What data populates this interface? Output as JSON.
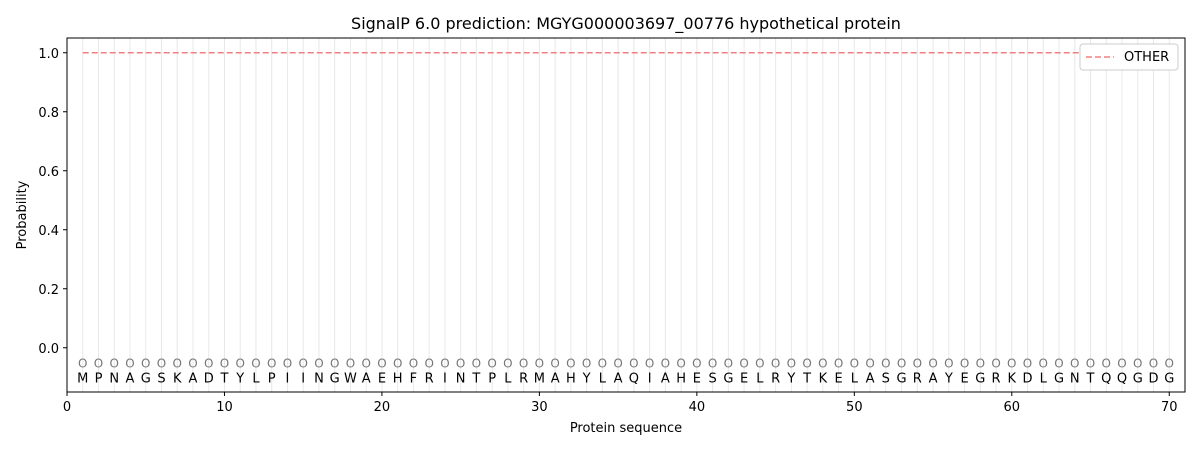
{
  "chart_data": {
    "type": "line",
    "title": "SignalP 6.0 prediction: MGYG000003697_00776 hypothetical protein",
    "xlabel": "Protein sequence",
    "ylabel": "Probability",
    "xlim": [
      0,
      71
    ],
    "ylim": [
      -0.15,
      1.05
    ],
    "xticks": [
      0,
      10,
      20,
      30,
      40,
      50,
      60,
      70
    ],
    "yticks": [
      0.0,
      0.2,
      0.4,
      0.6,
      0.8,
      1.0
    ],
    "ytick_labels": [
      "0.0",
      "0.2",
      "0.4",
      "0.6",
      "0.8",
      "1.0"
    ],
    "sequence": [
      "M",
      "P",
      "N",
      "A",
      "G",
      "S",
      "K",
      "A",
      "D",
      "T",
      "Y",
      "L",
      "P",
      "I",
      "I",
      "N",
      "G",
      "W",
      "A",
      "E",
      "H",
      "F",
      "R",
      "I",
      "N",
      "T",
      "P",
      "L",
      "R",
      "M",
      "A",
      "H",
      "Y",
      "L",
      "A",
      "Q",
      "I",
      "A",
      "H",
      "E",
      "S",
      "G",
      "E",
      "L",
      "R",
      "Y",
      "T",
      "K",
      "E",
      "L",
      "A",
      "S",
      "G",
      "R",
      "A",
      "Y",
      "E",
      "G",
      "R",
      "K",
      "D",
      "L",
      "G",
      "N",
      "T",
      "Q",
      "Q",
      "G",
      "D",
      "G"
    ],
    "region_label": "O",
    "series": [
      {
        "name": "OTHER",
        "color": "#f08080",
        "style": "dashed",
        "x_start": 1,
        "x_end": 70,
        "value": 1.0
      }
    ],
    "legend": "top-right",
    "grid": "vertical lines at each residue"
  }
}
